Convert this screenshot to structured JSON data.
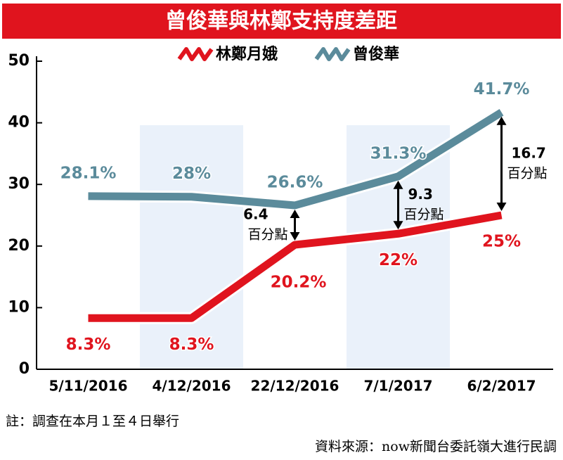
{
  "chart_data": {
    "type": "line",
    "title": "曾俊華與林鄭支持度差距",
    "categories": [
      "5/11/2016",
      "4/12/2016",
      "22/12/2016",
      "7/1/2017",
      "6/2/2017"
    ],
    "series": [
      {
        "name": "林鄭月娥",
        "color": "#e0141e",
        "values": [
          8.3,
          8.3,
          20.2,
          22,
          25
        ],
        "value_labels": [
          "8.3%",
          "8.3%",
          "20.2%",
          "22%",
          "25%"
        ]
      },
      {
        "name": "曾俊華",
        "color": "#5b8b9b",
        "values": [
          28.1,
          28,
          26.6,
          31.3,
          41.7
        ],
        "value_labels": [
          "28.1%",
          "28%",
          "26.6%",
          "31.3%",
          "41.7%"
        ]
      }
    ],
    "gap_annotations": [
      {
        "category": 2,
        "value": 6.4,
        "label": "百分點"
      },
      {
        "category": 3,
        "value": 9.3,
        "label": "百分點"
      },
      {
        "category": 4,
        "value": 16.7,
        "label": "百分點"
      }
    ],
    "ylim": [
      0,
      50
    ],
    "yticks": [
      0,
      10,
      20,
      30,
      40,
      50
    ],
    "footnote": "註：調查在本月１至４日舉行",
    "source": "資料來源：now新聞台委託嶺大進行民調"
  }
}
